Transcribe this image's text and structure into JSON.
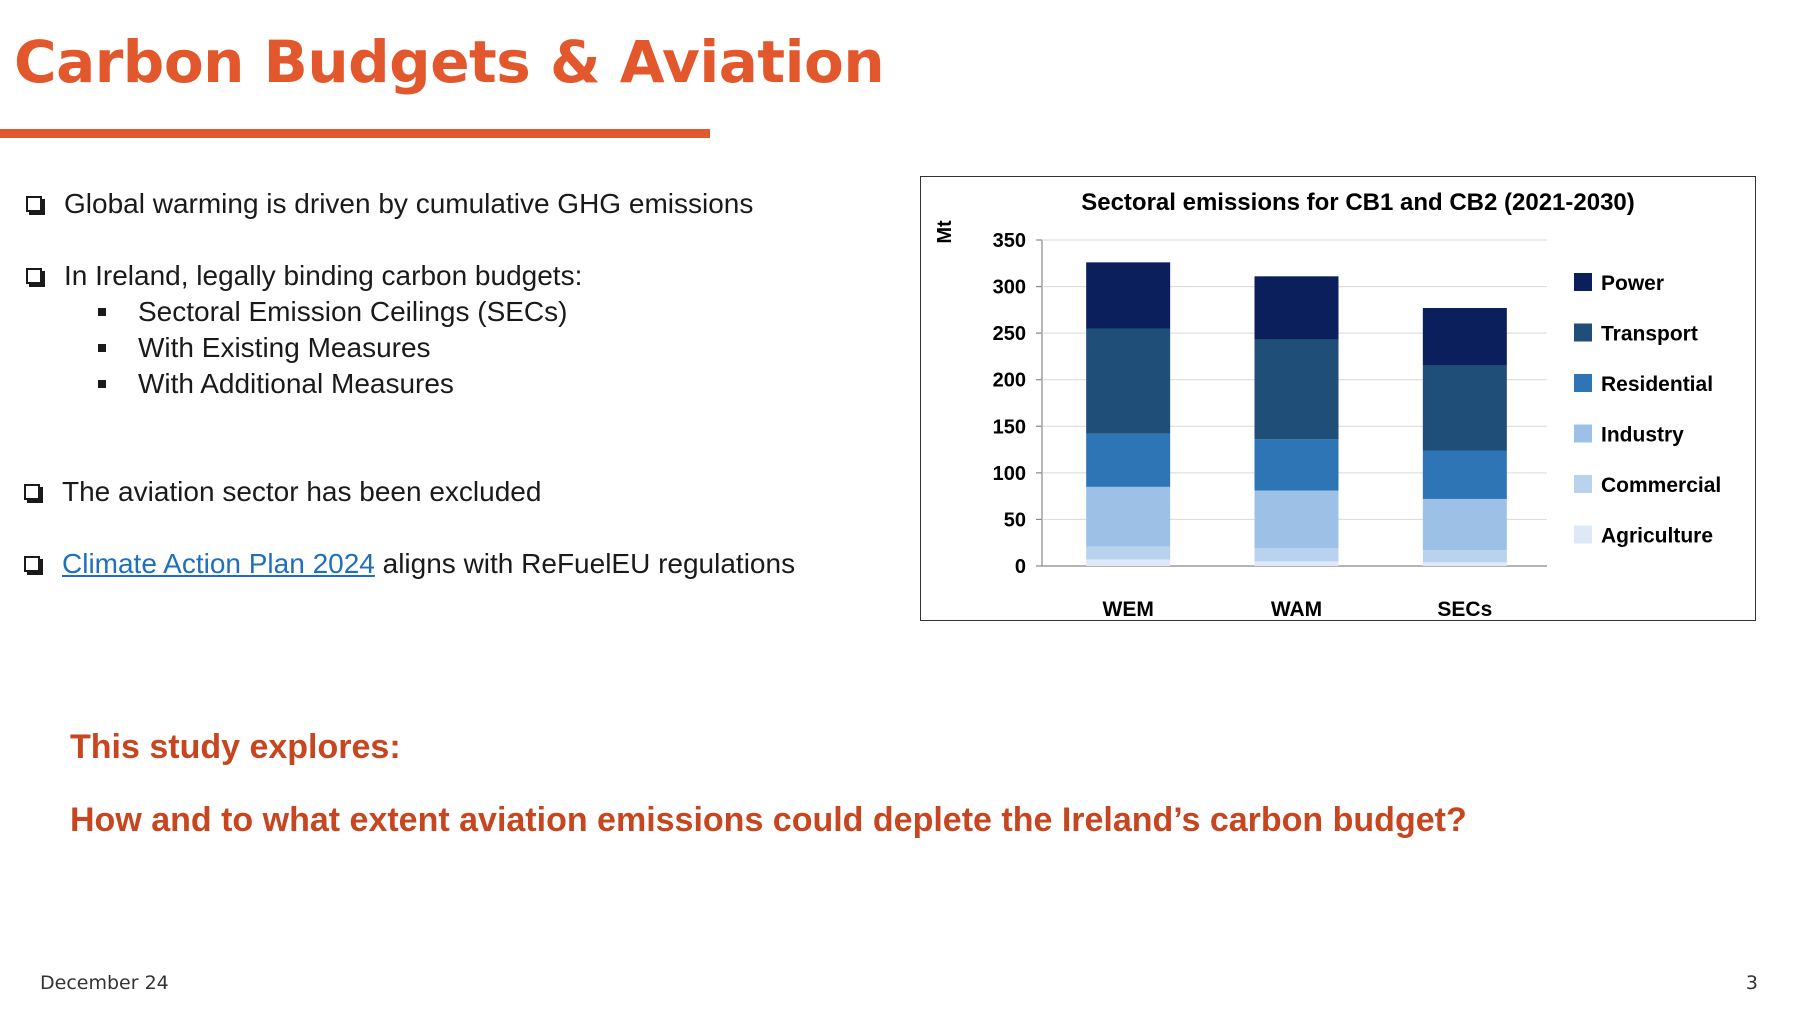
{
  "slide": {
    "title": "Carbon Budgets & Aviation",
    "footer_date": "December 24",
    "page_number": "3",
    "accent_color": "#e2572b"
  },
  "bullets": {
    "b1": "Global warming is driven by cumulative GHG emissions",
    "b2": "In Ireland, legally binding carbon budgets:",
    "sub1": "Sectoral Emission Ceilings (SECs)",
    "sub2": "With Existing Measures",
    "sub3": "With Additional Measures",
    "b3": "The aviation sector has been excluded",
    "b4_link": "Climate Action Plan 2024",
    "b4_rest": " aligns with ReFuelEU regulations"
  },
  "study": {
    "heading": "This study explores:",
    "question": "How and to what extent aviation emissions could deplete the Ireland’s carbon budget?"
  },
  "chart_data": {
    "type": "bar",
    "stacked": true,
    "title": "Sectoral emissions for CB1 and CB2 (2021-2030)",
    "ylabel": "Mt",
    "ylim": [
      0,
      350
    ],
    "yticks": [
      0,
      50,
      100,
      150,
      200,
      250,
      300,
      350
    ],
    "categories": [
      "WEM",
      "WAM",
      "SECs"
    ],
    "legend_position": "right",
    "grid": true,
    "series": [
      {
        "name": "Agriculture",
        "color": "#dde9f6",
        "values": [
          7,
          5,
          4
        ]
      },
      {
        "name": "Commercial",
        "color": "#b9d3ee",
        "values": [
          14,
          14,
          13
        ]
      },
      {
        "name": "Industry",
        "color": "#9dc1e6",
        "values": [
          64,
          62,
          55
        ]
      },
      {
        "name": "Residential",
        "color": "#2e75b6",
        "values": [
          57,
          55,
          52
        ]
      },
      {
        "name": "Transport",
        "color": "#1f4e79",
        "values": [
          113,
          107,
          91
        ]
      },
      {
        "name": "Power",
        "color": "#0b1f5c",
        "values": [
          71,
          68,
          62
        ]
      }
    ]
  }
}
